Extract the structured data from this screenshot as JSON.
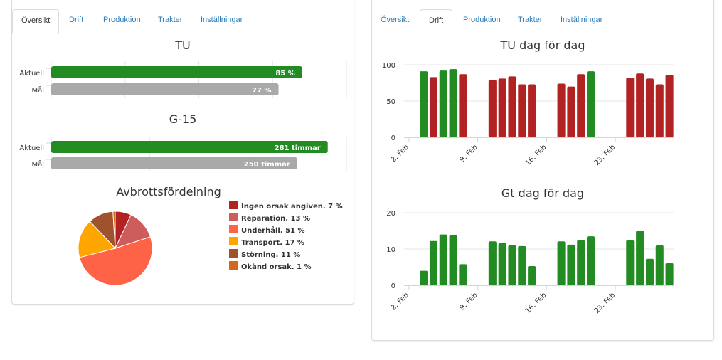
{
  "left_panel": {
    "tabs": [
      "Översikt",
      "Drift",
      "Produktion",
      "Trakter",
      "Inställningar"
    ],
    "active_tab": 0
  },
  "right_panel": {
    "tabs": [
      "Översikt",
      "Drift",
      "Produktion",
      "Trakter",
      "Inställningar"
    ],
    "active_tab": 1
  },
  "colors": {
    "green": "#228b22",
    "red": "#b22222",
    "grey": "#a9a9a9"
  },
  "chart_data": [
    {
      "type": "bar",
      "orientation": "horizontal",
      "title": "TU",
      "categories": [
        "Aktuell",
        "Mål"
      ],
      "values": [
        85,
        77
      ],
      "data_labels": [
        "85 %",
        "77 %"
      ],
      "colors": [
        "#228b22",
        "#a9a9a9"
      ],
      "xlim": [
        0,
        100
      ]
    },
    {
      "type": "bar",
      "orientation": "horizontal",
      "title": "G-15",
      "categories": [
        "Aktuell",
        "Mål"
      ],
      "values": [
        281,
        250
      ],
      "data_labels": [
        "281 timmar",
        "250 timmar"
      ],
      "colors": [
        "#228b22",
        "#a9a9a9"
      ],
      "xlim": [
        0,
        300
      ]
    },
    {
      "type": "pie",
      "title": "Avbrottsfördelning",
      "legend_position": "right",
      "slices": [
        {
          "label": "Ingen orsak angiven. 7 %",
          "value": 7,
          "color": "#b22222"
        },
        {
          "label": "Reparation. 13 %",
          "value": 13,
          "color": "#cd5c5c"
        },
        {
          "label": "Underhåll. 51 %",
          "value": 51,
          "color": "#ff6347"
        },
        {
          "label": "Transport. 17 %",
          "value": 17,
          "color": "#ffa500"
        },
        {
          "label": "Störning. 11 %",
          "value": 11,
          "color": "#a0522d"
        },
        {
          "label": "Okänd orsak. 1 %",
          "value": 1,
          "color": "#d2691e"
        }
      ]
    },
    {
      "type": "bar",
      "title": "TU dag för dag",
      "x_tick_labels": [
        "2. Feb",
        "9. Feb",
        "16. Feb",
        "23. Feb"
      ],
      "x_ticks": [
        "2020-02-02",
        "2020-02-09",
        "2020-02-16",
        "2020-02-23"
      ],
      "y_ticks": [
        "0",
        "50",
        "100"
      ],
      "ylim": [
        0,
        100
      ],
      "grid": true,
      "points": [
        {
          "date": "2020-02-03",
          "value": 91,
          "color": "#228b22"
        },
        {
          "date": "2020-02-04",
          "value": 83,
          "color": "#b22222"
        },
        {
          "date": "2020-02-05",
          "value": 92,
          "color": "#228b22"
        },
        {
          "date": "2020-02-06",
          "value": 94,
          "color": "#228b22"
        },
        {
          "date": "2020-02-07",
          "value": 87,
          "color": "#b22222"
        },
        {
          "date": "2020-02-10",
          "value": 79,
          "color": "#b22222"
        },
        {
          "date": "2020-02-11",
          "value": 81,
          "color": "#b22222"
        },
        {
          "date": "2020-02-12",
          "value": 84,
          "color": "#b22222"
        },
        {
          "date": "2020-02-13",
          "value": 73,
          "color": "#b22222"
        },
        {
          "date": "2020-02-14",
          "value": 73,
          "color": "#b22222"
        },
        {
          "date": "2020-02-17",
          "value": 74,
          "color": "#b22222"
        },
        {
          "date": "2020-02-18",
          "value": 70,
          "color": "#b22222"
        },
        {
          "date": "2020-02-19",
          "value": 87,
          "color": "#b22222"
        },
        {
          "date": "2020-02-20",
          "value": 91,
          "color": "#228b22"
        },
        {
          "date": "2020-02-24",
          "value": 82,
          "color": "#b22222"
        },
        {
          "date": "2020-02-25",
          "value": 88,
          "color": "#b22222"
        },
        {
          "date": "2020-02-26",
          "value": 81,
          "color": "#b22222"
        },
        {
          "date": "2020-02-27",
          "value": 73,
          "color": "#b22222"
        },
        {
          "date": "2020-02-28",
          "value": 86,
          "color": "#b22222"
        }
      ]
    },
    {
      "type": "bar",
      "title": "Gt dag för dag",
      "x_tick_labels": [
        "2. Feb",
        "9. Feb",
        "16. Feb",
        "23. Feb"
      ],
      "x_ticks": [
        "2020-02-02",
        "2020-02-09",
        "2020-02-16",
        "2020-02-23"
      ],
      "y_ticks": [
        "0",
        "10",
        "20"
      ],
      "ylim": [
        0,
        20
      ],
      "grid": true,
      "points": [
        {
          "date": "2020-02-03",
          "value": 4,
          "color": "#228b22"
        },
        {
          "date": "2020-02-04",
          "value": 12.2,
          "color": "#228b22"
        },
        {
          "date": "2020-02-05",
          "value": 14,
          "color": "#228b22"
        },
        {
          "date": "2020-02-06",
          "value": 13.8,
          "color": "#228b22"
        },
        {
          "date": "2020-02-07",
          "value": 5.8,
          "color": "#228b22"
        },
        {
          "date": "2020-02-10",
          "value": 12.1,
          "color": "#228b22"
        },
        {
          "date": "2020-02-11",
          "value": 11.6,
          "color": "#228b22"
        },
        {
          "date": "2020-02-12",
          "value": 11,
          "color": "#228b22"
        },
        {
          "date": "2020-02-13",
          "value": 10.8,
          "color": "#228b22"
        },
        {
          "date": "2020-02-14",
          "value": 5.3,
          "color": "#228b22"
        },
        {
          "date": "2020-02-17",
          "value": 12.1,
          "color": "#228b22"
        },
        {
          "date": "2020-02-18",
          "value": 11.2,
          "color": "#228b22"
        },
        {
          "date": "2020-02-19",
          "value": 12.4,
          "color": "#228b22"
        },
        {
          "date": "2020-02-20",
          "value": 13.5,
          "color": "#228b22"
        },
        {
          "date": "2020-02-24",
          "value": 12.4,
          "color": "#228b22"
        },
        {
          "date": "2020-02-25",
          "value": 15,
          "color": "#228b22"
        },
        {
          "date": "2020-02-26",
          "value": 7.3,
          "color": "#228b22"
        },
        {
          "date": "2020-02-27",
          "value": 11,
          "color": "#228b22"
        },
        {
          "date": "2020-02-28",
          "value": 6.1,
          "color": "#228b22"
        }
      ]
    }
  ]
}
